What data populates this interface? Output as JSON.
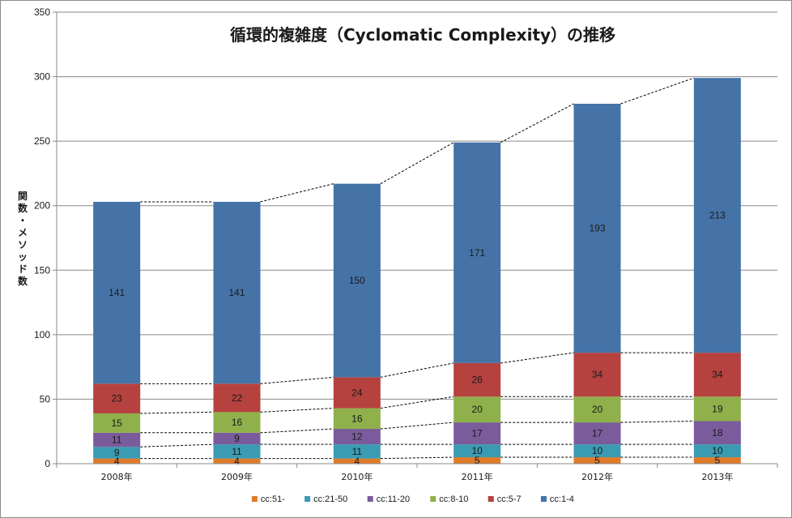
{
  "chart_data": {
    "type": "bar",
    "stacked": true,
    "title": "循環的複雑度（Cyclomatic Complexity）の推移",
    "ylabel": "関数・メソッド数",
    "xlabel": "",
    "categories": [
      "2008年",
      "2009年",
      "2010年",
      "2011年",
      "2012年",
      "2013年"
    ],
    "ylim": [
      0,
      350
    ],
    "yticks": [
      0,
      50,
      100,
      150,
      200,
      250,
      300,
      350
    ],
    "grid": true,
    "legend_position": "bottom",
    "series_connectors": "dashed lines between bars",
    "series": [
      {
        "name": "cc:51-",
        "color": "#e07b2a",
        "values": [
          4,
          4,
          4,
          5,
          5,
          5
        ]
      },
      {
        "name": "cc:21-50",
        "color": "#3b9bb3",
        "values": [
          9,
          11,
          11,
          10,
          10,
          10
        ]
      },
      {
        "name": "cc:11-20",
        "color": "#7a5c9c",
        "values": [
          11,
          9,
          12,
          17,
          17,
          18
        ]
      },
      {
        "name": "cc:8-10",
        "color": "#8fb04b",
        "values": [
          15,
          16,
          16,
          20,
          20,
          19
        ]
      },
      {
        "name": "cc:5-7",
        "color": "#b5423f",
        "values": [
          23,
          22,
          24,
          26,
          34,
          34
        ]
      },
      {
        "name": "cc:1-4",
        "color": "#4573a8",
        "values": [
          141,
          141,
          150,
          171,
          193,
          213
        ]
      }
    ]
  }
}
